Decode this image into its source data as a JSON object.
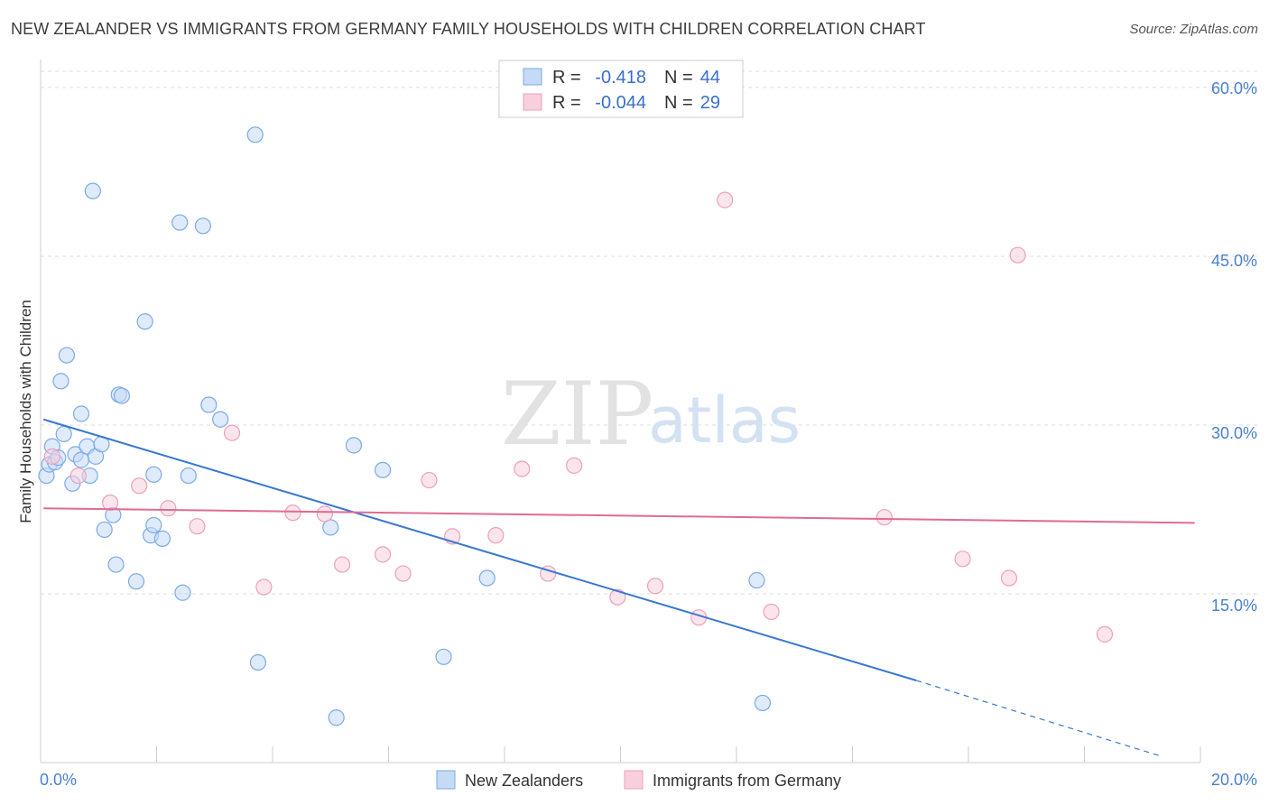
{
  "chart_data": {
    "type": "scatter",
    "title": "NEW ZEALANDER VS IMMIGRANTS FROM GERMANY FAMILY HOUSEHOLDS WITH CHILDREN CORRELATION CHART",
    "source": "Source: ZipAtlas.com",
    "ylabel": "Family Households with Children",
    "xlabel": "",
    "xlim": [
      0,
      20
    ],
    "ylim": [
      0,
      62
    ],
    "x_tick_labels": [
      "0.0%",
      "20.0%"
    ],
    "y_ticks": [
      15,
      30,
      45,
      60
    ],
    "y_tick_labels": [
      "15.0%",
      "30.0%",
      "45.0%",
      "60.0%"
    ],
    "watermark": {
      "zip": "ZIP",
      "atlas": "atlas"
    },
    "legend": [
      {
        "r_label": "R =",
        "r_value": "-0.418",
        "n_label": "N =",
        "n_value": "44"
      },
      {
        "r_label": "R =",
        "r_value": "-0.044",
        "n_label": "N =",
        "n_value": "29"
      }
    ],
    "series": [
      {
        "name": "New Zealanders",
        "color": "#7aaae8",
        "fill": "#c5daf5",
        "line_color": "#3a78d0",
        "trend": {
          "x0": 0.05,
          "y0": 30.5,
          "x1": 15.1,
          "y1": 7.3,
          "dash_x1": 19.3,
          "dash_y1": 0.6
        },
        "points": [
          [
            0.1,
            25.5
          ],
          [
            0.15,
            26.5
          ],
          [
            0.2,
            28.1
          ],
          [
            0.25,
            26.7
          ],
          [
            0.3,
            27.1
          ],
          [
            0.35,
            33.9
          ],
          [
            0.4,
            29.2
          ],
          [
            0.45,
            36.2
          ],
          [
            0.55,
            24.8
          ],
          [
            0.6,
            27.4
          ],
          [
            0.7,
            26.9
          ],
          [
            0.7,
            31.0
          ],
          [
            0.8,
            28.1
          ],
          [
            0.85,
            25.5
          ],
          [
            0.9,
            50.8
          ],
          [
            0.95,
            27.2
          ],
          [
            1.05,
            28.3
          ],
          [
            1.1,
            20.7
          ],
          [
            1.25,
            22.0
          ],
          [
            1.3,
            17.6
          ],
          [
            1.35,
            32.7
          ],
          [
            1.4,
            32.6
          ],
          [
            1.65,
            16.1
          ],
          [
            1.8,
            39.2
          ],
          [
            1.9,
            20.2
          ],
          [
            1.95,
            25.6
          ],
          [
            1.95,
            21.1
          ],
          [
            2.1,
            19.9
          ],
          [
            2.4,
            48.0
          ],
          [
            2.45,
            15.1
          ],
          [
            2.55,
            25.5
          ],
          [
            2.8,
            47.7
          ],
          [
            2.9,
            31.8
          ],
          [
            3.1,
            30.5
          ],
          [
            3.7,
            55.8
          ],
          [
            3.75,
            8.9
          ],
          [
            5.0,
            20.9
          ],
          [
            5.1,
            4.0
          ],
          [
            5.4,
            28.2
          ],
          [
            5.9,
            26.0
          ],
          [
            6.95,
            9.4
          ],
          [
            7.7,
            16.4
          ],
          [
            12.35,
            16.2
          ],
          [
            12.45,
            5.3
          ]
        ]
      },
      {
        "name": "Immigrants from Germany",
        "color": "#eda0b8",
        "fill": "#f8cfdc",
        "line_color": "#e06b93",
        "trend": {
          "x0": 0.05,
          "y0": 22.6,
          "x1": 19.9,
          "y1": 21.3
        },
        "points": [
          [
            0.2,
            27.2
          ],
          [
            0.65,
            25.5
          ],
          [
            1.2,
            23.1
          ],
          [
            1.7,
            24.6
          ],
          [
            2.2,
            22.6
          ],
          [
            2.7,
            21.0
          ],
          [
            3.3,
            29.3
          ],
          [
            3.85,
            15.6
          ],
          [
            4.35,
            22.2
          ],
          [
            4.9,
            22.1
          ],
          [
            5.2,
            17.6
          ],
          [
            5.9,
            18.5
          ],
          [
            6.25,
            16.8
          ],
          [
            6.7,
            25.1
          ],
          [
            7.1,
            20.1
          ],
          [
            7.85,
            20.2
          ],
          [
            8.3,
            26.1
          ],
          [
            8.75,
            16.8
          ],
          [
            9.2,
            26.4
          ],
          [
            9.95,
            14.7
          ],
          [
            10.6,
            15.7
          ],
          [
            11.35,
            12.9
          ],
          [
            11.8,
            50.0
          ],
          [
            12.6,
            13.4
          ],
          [
            14.55,
            21.8
          ],
          [
            15.9,
            18.1
          ],
          [
            16.7,
            16.4
          ],
          [
            16.85,
            45.1
          ],
          [
            18.35,
            11.4
          ]
        ]
      }
    ]
  }
}
